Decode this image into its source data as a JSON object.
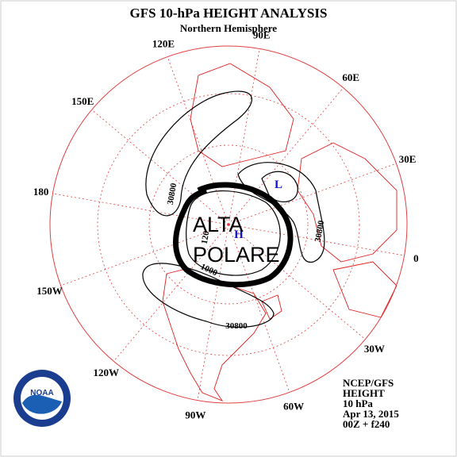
{
  "header": {
    "title": "GFS 10-hPa HEIGHT ANALYSIS",
    "subtitle": "Northern Hemisphere"
  },
  "longitude_labels": [
    "90E",
    "60E",
    "30E",
    "0",
    "30W",
    "60W",
    "90W",
    "120W",
    "150W",
    "180",
    "150E",
    "120E"
  ],
  "contour_labels": [
    "30800",
    "30800",
    "30800",
    "1000",
    "120"
  ],
  "centers": [
    "L",
    "H"
  ],
  "annotation": [
    "ALTA",
    "POLARE"
  ],
  "footer": [
    "NCEP/GFS",
    "HEIGHT",
    "10 hPa",
    "Apr 13, 2015",
    "00Z + f240"
  ],
  "logo": "NOAA"
}
